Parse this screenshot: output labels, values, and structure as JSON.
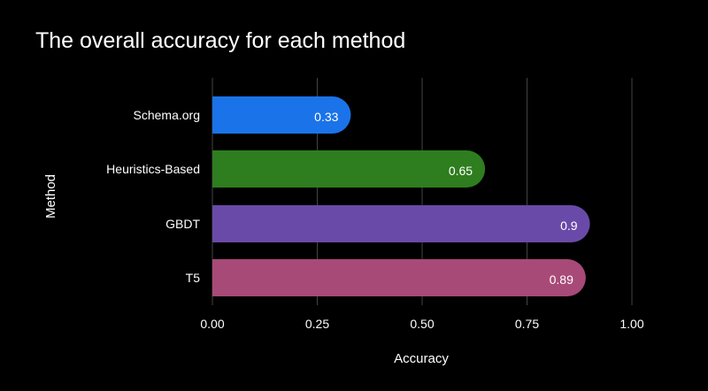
{
  "chart_data": {
    "type": "bar",
    "orientation": "horizontal",
    "title": "The overall accuracy for each method",
    "xlabel": "Accuracy",
    "ylabel": "Method",
    "categories": [
      "Schema.org",
      "Heuristics-Based",
      "GBDT",
      "T5"
    ],
    "values": [
      0.33,
      0.65,
      0.9,
      0.89
    ],
    "value_labels": [
      "0.33",
      "0.65",
      "0.9",
      "0.89"
    ],
    "bar_colors": [
      "#1a73e8",
      "#2e7d1f",
      "#6a4aa8",
      "#a84a78"
    ],
    "xlim": [
      0,
      1.0
    ],
    "x_ticks": [
      0.0,
      0.25,
      0.5,
      0.75,
      1.0
    ],
    "x_tick_labels": [
      "0.00",
      "0.25",
      "0.50",
      "0.75",
      "1.00"
    ],
    "grid": true,
    "grid_color": "#444444",
    "background": "#000000"
  }
}
